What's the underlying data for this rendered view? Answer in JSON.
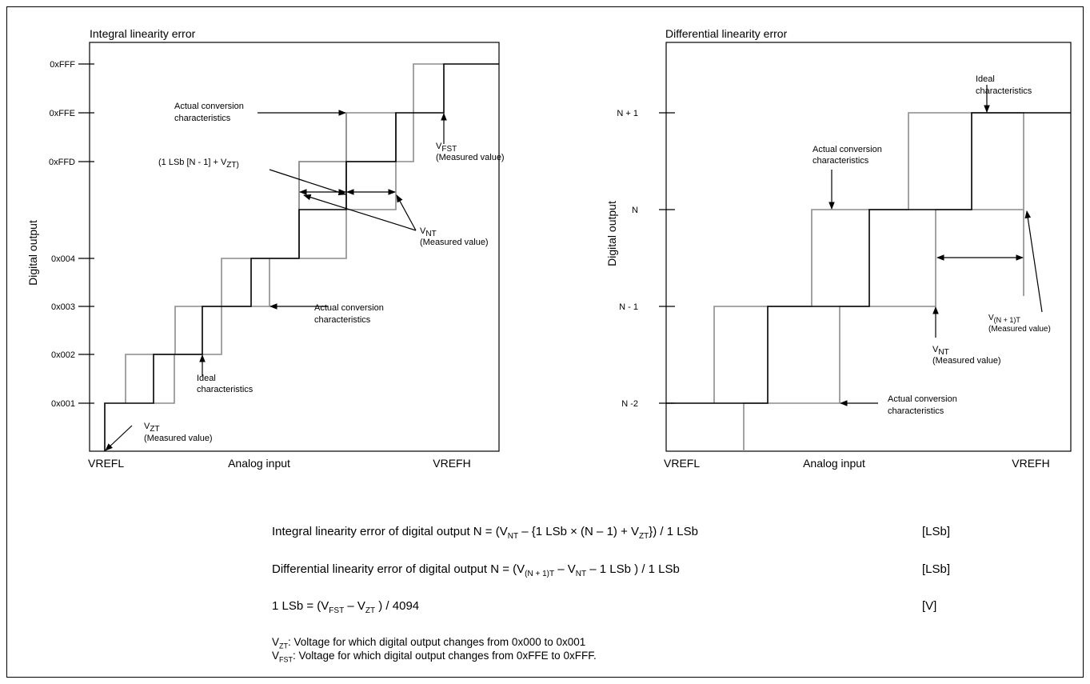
{
  "left_chart": {
    "title": "Integral linearity error",
    "ylabel": "Digital output",
    "xlabel": "Analog input",
    "x_min_label": "VREFL",
    "x_max_label": "VREFH",
    "y_ticks": [
      "0xFFF",
      "0xFFE",
      "0xFFD",
      "0x004",
      "0x003",
      "0x002",
      "0x001"
    ],
    "annotations": {
      "actual_top_1": "Actual conversion",
      "actual_top_2": "characteristics",
      "lsb_main": "(1 LSb [N - 1] + V",
      "lsb_sub": "ZT)",
      "lsb_tail": ")",
      "vfst_main": "V",
      "vfst_sub": "FST",
      "vfst_note": "(Measured value)",
      "vnt_main": "V",
      "vnt_sub": "NT",
      "vnt_note": "(Measured value)",
      "actual_mid_1": "Actual conversion",
      "actual_mid_2": "characteristics",
      "ideal_1": "Ideal",
      "ideal_2": "characteristics",
      "vzt_main": "V",
      "vzt_sub": "ZT",
      "vzt_note": "(Measured value)"
    }
  },
  "right_chart": {
    "title": "Differential linearity error",
    "ylabel": "Digital output",
    "xlabel": "Analog input",
    "x_min_label": "VREFL",
    "x_max_label": "VREFH",
    "y_ticks": [
      "N + 1",
      "N",
      "N - 1",
      "N -2"
    ],
    "annotations": {
      "ideal_1": "Ideal",
      "ideal_2": "characteristics",
      "actual_top_1": "Actual conversion",
      "actual_top_2": "characteristics",
      "vn1t_main": "V",
      "vn1t_sub": "(N + 1)T",
      "vn1t_note": "(Measured value)",
      "vnt_main": "V",
      "vnt_sub": "NT",
      "vnt_note": "(Measured value)",
      "actual_bot_1": "Actual conversion",
      "actual_bot_2": "characteristics"
    }
  },
  "formulas": {
    "integral": {
      "a": "Integral linearity error of digital output N = (V",
      "a_sub": "NT",
      "b": " – {1 LSb × (N – 1) + V",
      "b_sub": "ZT",
      "c": "}) / 1 LSb",
      "unit": "[LSb]"
    },
    "differential": {
      "a": "Differential linearity error of digital output N = (V",
      "a_sub": "(N + 1)T",
      "b": " – V",
      "b_sub": "NT",
      "c": " – 1 LSb ) / 1 LSb",
      "unit": "[LSb]"
    },
    "lsb": {
      "a": "1 LSb = (V",
      "a_sub": "FST",
      "b": " – V",
      "b_sub": "ZT",
      "c": " ) / 4094",
      "unit": "[V]"
    }
  },
  "notes": {
    "vzt_v": "V",
    "vzt_sub": "ZT",
    "vzt_text": ": Voltage for which digital output changes from 0x000 to 0x001",
    "vfst_v": "V",
    "vfst_sub": "FST",
    "vfst_text": ": Voltage for which digital output changes from 0xFFE to 0xFFF."
  }
}
